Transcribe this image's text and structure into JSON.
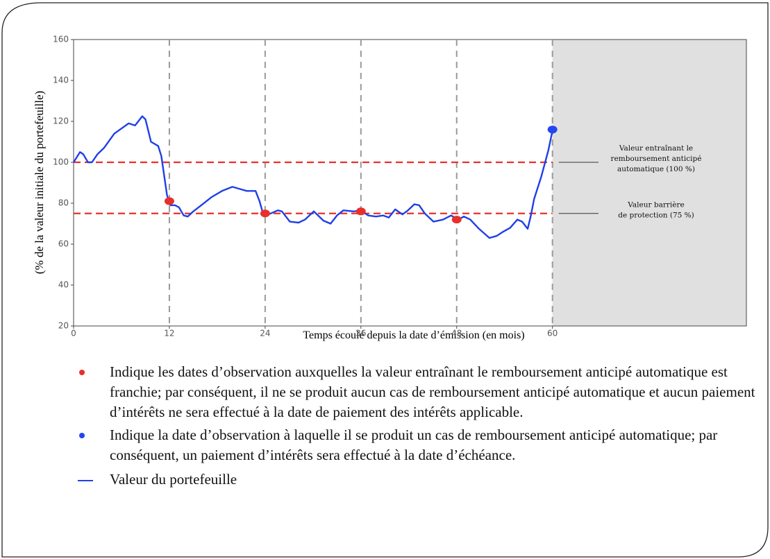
{
  "chart_data": {
    "type": "line",
    "y_label": "(% de la valeur initiale du portefeuille)",
    "x_label": "Temps écoulé depuis la date d’émission (en mois)",
    "xlim": [
      0,
      84.3
    ],
    "ylim": [
      20,
      160
    ],
    "xticks": [
      0,
      12,
      24,
      36,
      48,
      60
    ],
    "yticks": [
      20,
      40,
      60,
      80,
      100,
      120,
      140,
      160
    ],
    "vlines": [
      12,
      24,
      36,
      48,
      60
    ],
    "shade": [
      60,
      84.3
    ],
    "hlines": [
      {
        "value": 100,
        "color": "#e8302a",
        "label_lines": [
          "Valeur entraînant le",
          "remboursement anticipé",
          "automatique (100 %)"
        ]
      },
      {
        "value": 75,
        "color": "#e8302a",
        "label_lines": [
          "Valeur barrière",
          "de protection (75 %)"
        ]
      }
    ],
    "series": [
      {
        "name": "Indique les dates d’observation auxquelles la valeur entraînant le remboursement anticipé automatique est franchie; par conséquent, il ne se produit aucun cas de remboursement anticipé automatique et aucun paiement d’intérêts ne sera effectué à la date de paiement des intérêts applicable.",
        "type": "scatter",
        "color": "#e8302a",
        "x": [
          12,
          24,
          36,
          48
        ],
        "values": [
          81,
          75,
          76,
          72
        ]
      },
      {
        "name": "Indique la date d’observation à laquelle il se produit un cas de remboursement anticipé automatique; par conséquent, un paiement d’intérêts sera effectué à la date d’échéance.",
        "type": "scatter",
        "color": "#2346f0",
        "x": [
          60
        ],
        "values": [
          116
        ]
      },
      {
        "name": "Valeur du portefeuille",
        "type": "line",
        "color": "#1f3fe6",
        "x": [
          0,
          0.8,
          1.2,
          1.8,
          2.3,
          3.0,
          3.8,
          5.1,
          6.9,
          7.7,
          8.6,
          9.0,
          9.7,
          10.6,
          11.0,
          11.7,
          12.1,
          12.7,
          13.2,
          13.8,
          14.3,
          15.0,
          16.0,
          17.3,
          18.6,
          19.9,
          20.8,
          21.7,
          22.8,
          23.3,
          23.8,
          24.4,
          25.6,
          26.1,
          27.1,
          28.2,
          29.0,
          30.1,
          31.3,
          32.2,
          33.0,
          33.8,
          35.1,
          36.0,
          36.9,
          37.9,
          38.8,
          39.5,
          40.3,
          41.2,
          41.9,
          42.7,
          43.3,
          44.0,
          45.1,
          46.3,
          47.3,
          48.2,
          48.9,
          49.7,
          50.8,
          52.1,
          53.0,
          53.8,
          54.7,
          55.6,
          56.2,
          56.9,
          57.3,
          57.7,
          58.6,
          59.5,
          60.0
        ],
        "values": [
          100,
          105,
          104,
          100,
          100,
          104,
          107,
          114,
          119,
          118,
          122.5,
          121,
          110,
          108,
          103,
          84,
          79,
          79,
          78,
          74,
          73.5,
          76,
          79,
          83,
          86,
          88,
          87,
          86,
          86,
          81,
          74,
          74.5,
          76.5,
          76,
          71,
          70.5,
          72,
          76,
          71.5,
          70,
          74,
          76.5,
          76,
          76.5,
          74,
          73.5,
          74,
          73,
          77,
          74.5,
          76.5,
          79.5,
          79,
          75,
          71,
          72,
          74,
          72,
          73.5,
          72,
          67.5,
          63,
          64,
          66,
          68,
          72,
          71,
          67.5,
          74,
          82,
          93,
          106,
          115.5
        ]
      }
    ]
  }
}
